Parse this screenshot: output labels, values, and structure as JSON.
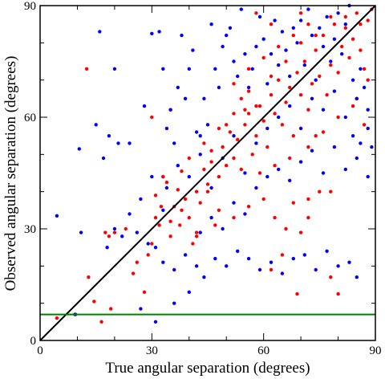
{
  "chart_data": {
    "type": "scatter",
    "title": "",
    "xlabel": "True angular separation (degrees)",
    "ylabel": "Observed angular separation (degrees)",
    "xlim": [
      0,
      90
    ],
    "ylim": [
      0,
      90
    ],
    "xticks": [
      0,
      30,
      60,
      90
    ],
    "yticks": [
      0,
      30,
      60,
      90
    ],
    "grid": false,
    "colors": {
      "series_a": "#ff0000",
      "series_b": "#0000ff",
      "identity_line": "#000000",
      "threshold_line": "#008000"
    },
    "reference_lines": [
      {
        "kind": "identity",
        "from": [
          0,
          0
        ],
        "to": [
          90,
          90
        ]
      },
      {
        "kind": "horizontal",
        "y": 7
      }
    ],
    "series": [
      {
        "color": "#ff0000",
        "points": [
          [
            4.5,
            6
          ],
          [
            9.3,
            7
          ],
          [
            13,
            17
          ],
          [
            14.5,
            10.5
          ],
          [
            16.5,
            5
          ],
          [
            17.5,
            29
          ],
          [
            18.5,
            28
          ],
          [
            19,
            8.5
          ],
          [
            20,
            29
          ],
          [
            12.5,
            73
          ],
          [
            23,
            30
          ],
          [
            25,
            18
          ],
          [
            26,
            21
          ],
          [
            28,
            13
          ],
          [
            29,
            23
          ],
          [
            30,
            26
          ],
          [
            31,
            33
          ],
          [
            32,
            31
          ],
          [
            32.5,
            36
          ],
          [
            33,
            44
          ],
          [
            34,
            42.5
          ],
          [
            35,
            28
          ],
          [
            36,
            36
          ],
          [
            37,
            40.5
          ],
          [
            37.5,
            31
          ],
          [
            38,
            45.5
          ],
          [
            39,
            38
          ],
          [
            40,
            33
          ],
          [
            41,
            26
          ],
          [
            42,
            40
          ],
          [
            43,
            37
          ],
          [
            44,
            46
          ],
          [
            45,
            42
          ],
          [
            46,
            51
          ],
          [
            47,
            31
          ],
          [
            48,
            44
          ],
          [
            49,
            52
          ],
          [
            50,
            47
          ],
          [
            51,
            56
          ],
          [
            52,
            49
          ],
          [
            53,
            54
          ],
          [
            54,
            46
          ],
          [
            55,
            58
          ],
          [
            56,
            61
          ],
          [
            57,
            50
          ],
          [
            58,
            55
          ],
          [
            59,
            63
          ],
          [
            60,
            59
          ],
          [
            61,
            52
          ],
          [
            62,
            66
          ],
          [
            63,
            61
          ],
          [
            64,
            70
          ],
          [
            65,
            58
          ],
          [
            66,
            64
          ],
          [
            67,
            68
          ],
          [
            68,
            55
          ],
          [
            69,
            72
          ],
          [
            70,
            66
          ],
          [
            71,
            75
          ],
          [
            72,
            62
          ],
          [
            73,
            69
          ],
          [
            74,
            78
          ],
          [
            75,
            71
          ],
          [
            76,
            82
          ],
          [
            77,
            66
          ],
          [
            78,
            74
          ],
          [
            79,
            85
          ],
          [
            80,
            72
          ],
          [
            81,
            79
          ],
          [
            82,
            87
          ],
          [
            83,
            76
          ],
          [
            84,
            81
          ],
          [
            85,
            88
          ],
          [
            86,
            85
          ],
          [
            87,
            73
          ],
          [
            88,
            86
          ],
          [
            89,
            89
          ],
          [
            63,
            33
          ],
          [
            66,
            30
          ],
          [
            70,
            29
          ],
          [
            68,
            37
          ],
          [
            72,
            38
          ],
          [
            75,
            40
          ],
          [
            78,
            40
          ],
          [
            72,
            33
          ],
          [
            78,
            17
          ],
          [
            80,
            12.5
          ],
          [
            69,
            12.5
          ],
          [
            62,
            19
          ],
          [
            65,
            23
          ],
          [
            60,
            38
          ],
          [
            56,
            36
          ],
          [
            52,
            33
          ],
          [
            48,
            35
          ],
          [
            45,
            40
          ],
          [
            42,
            29
          ],
          [
            38,
            35
          ],
          [
            35,
            32
          ],
          [
            33,
            44
          ],
          [
            31,
            39
          ],
          [
            42,
            28
          ],
          [
            46,
            48
          ],
          [
            50,
            58
          ],
          [
            54,
            65
          ],
          [
            58,
            63
          ],
          [
            62,
            71
          ],
          [
            66,
            75
          ],
          [
            70,
            80
          ],
          [
            74,
            82
          ],
          [
            78,
            87
          ],
          [
            82,
            84
          ],
          [
            86,
            78
          ],
          [
            88,
            70
          ],
          [
            85,
            65
          ],
          [
            80,
            60
          ],
          [
            76,
            56
          ],
          [
            72,
            52
          ],
          [
            67,
            49
          ],
          [
            63,
            47
          ],
          [
            59,
            45
          ],
          [
            55,
            62
          ],
          [
            52,
            69
          ],
          [
            56,
            73
          ],
          [
            60,
            76
          ],
          [
            64,
            79
          ],
          [
            68,
            82
          ],
          [
            72,
            85
          ],
          [
            58,
            88
          ],
          [
            62,
            85
          ],
          [
            70,
            88
          ],
          [
            35,
            62
          ],
          [
            30,
            60
          ],
          [
            40,
            49
          ],
          [
            44,
            53
          ],
          [
            48,
            57
          ],
          [
            52,
            61
          ],
          [
            56,
            67
          ],
          [
            84,
            63
          ],
          [
            87,
            58
          ],
          [
            74,
            55
          ]
        ]
      },
      {
        "color": "#0000ff",
        "points": [
          [
            4.5,
            33.5
          ],
          [
            9.5,
            7
          ],
          [
            10.5,
            51.5
          ],
          [
            11,
            29
          ],
          [
            15,
            58
          ],
          [
            16,
            83
          ],
          [
            17,
            49
          ],
          [
            18.5,
            55
          ],
          [
            20,
            73
          ],
          [
            21,
            53
          ],
          [
            22,
            28
          ],
          [
            24,
            53
          ],
          [
            26,
            29
          ],
          [
            27,
            8.5
          ],
          [
            28,
            63
          ],
          [
            29,
            26
          ],
          [
            30,
            82.5
          ],
          [
            31,
            5
          ],
          [
            32,
            83
          ],
          [
            33,
            73
          ],
          [
            34,
            57
          ],
          [
            35,
            62
          ],
          [
            36,
            53
          ],
          [
            37,
            68
          ],
          [
            38,
            82
          ],
          [
            39,
            65
          ],
          [
            40,
            73
          ],
          [
            41,
            78
          ],
          [
            42,
            56
          ],
          [
            43,
            50
          ],
          [
            44,
            65
          ],
          [
            45,
            58
          ],
          [
            46,
            85
          ],
          [
            47,
            73
          ],
          [
            48,
            68
          ],
          [
            49,
            79
          ],
          [
            50,
            82
          ],
          [
            51,
            84
          ],
          [
            52,
            75
          ],
          [
            53,
            71
          ],
          [
            54,
            89
          ],
          [
            55,
            77
          ],
          [
            56,
            68
          ],
          [
            57,
            73
          ],
          [
            58,
            79
          ],
          [
            59,
            87
          ],
          [
            60,
            81
          ],
          [
            61,
            69
          ],
          [
            62,
            77
          ],
          [
            63,
            86
          ],
          [
            64,
            74
          ],
          [
            65,
            83
          ],
          [
            66,
            78
          ],
          [
            67,
            71
          ],
          [
            68,
            84
          ],
          [
            69,
            80
          ],
          [
            70,
            86
          ],
          [
            71,
            74
          ],
          [
            72,
            89
          ],
          [
            73,
            82
          ],
          [
            74,
            70
          ],
          [
            75,
            84
          ],
          [
            76,
            79
          ],
          [
            77,
            87
          ],
          [
            78,
            75
          ],
          [
            79,
            81
          ],
          [
            80,
            88
          ],
          [
            81,
            77
          ],
          [
            82,
            85
          ],
          [
            83,
            90
          ],
          [
            84,
            70
          ],
          [
            85,
            65
          ],
          [
            86,
            73
          ],
          [
            87,
            68
          ],
          [
            88,
            57
          ],
          [
            89,
            52
          ],
          [
            31,
            25
          ],
          [
            33,
            21
          ],
          [
            36,
            19
          ],
          [
            39,
            23
          ],
          [
            42,
            20
          ],
          [
            44,
            17
          ],
          [
            47,
            22
          ],
          [
            50,
            20
          ],
          [
            53,
            24
          ],
          [
            56,
            22
          ],
          [
            59,
            19
          ],
          [
            62,
            21
          ],
          [
            65,
            18
          ],
          [
            68,
            22
          ],
          [
            71,
            23
          ],
          [
            74,
            19
          ],
          [
            77,
            24
          ],
          [
            80,
            20
          ],
          [
            83,
            21
          ],
          [
            85,
            17
          ],
          [
            36,
            10
          ],
          [
            40,
            13
          ],
          [
            43,
            29
          ],
          [
            46,
            33
          ],
          [
            49,
            30
          ],
          [
            52,
            37
          ],
          [
            55,
            34
          ],
          [
            58,
            41
          ],
          [
            61,
            44
          ],
          [
            64,
            46
          ],
          [
            67,
            43
          ],
          [
            70,
            48
          ],
          [
            73,
            51
          ],
          [
            76,
            45
          ],
          [
            79,
            52
          ],
          [
            82,
            46
          ],
          [
            85,
            49
          ],
          [
            88,
            44
          ],
          [
            34,
            41
          ],
          [
            37,
            47
          ],
          [
            40,
            44
          ],
          [
            43,
            55
          ],
          [
            46,
            41
          ],
          [
            49,
            49
          ],
          [
            52,
            55
          ],
          [
            55,
            45
          ],
          [
            58,
            53
          ],
          [
            61,
            57
          ],
          [
            64,
            60
          ],
          [
            67,
            63
          ],
          [
            70,
            57
          ],
          [
            73,
            65
          ],
          [
            76,
            62
          ],
          [
            79,
            67
          ],
          [
            82,
            60
          ],
          [
            84,
            55
          ],
          [
            86,
            53
          ],
          [
            88,
            62
          ],
          [
            24,
            34
          ],
          [
            20,
            30
          ],
          [
            18,
            25
          ],
          [
            30,
            44
          ],
          [
            27,
            38
          ],
          [
            33,
            35
          ]
        ]
      }
    ]
  }
}
